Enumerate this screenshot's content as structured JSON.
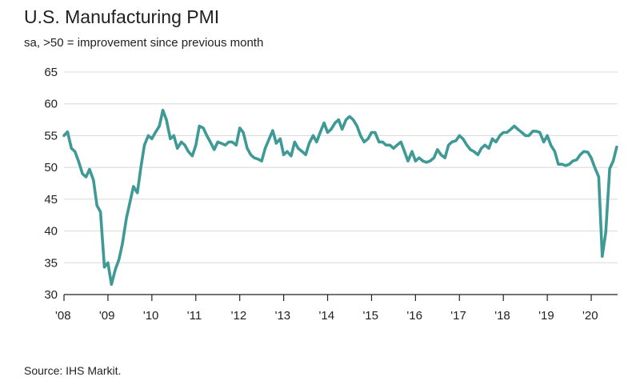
{
  "header": {
    "title": "U.S. Manufacturing PMI",
    "subtitle": "sa, >50 = improvement since previous month"
  },
  "footer": {
    "source": "Source: IHS Markit."
  },
  "colors": {
    "line": "#3f9a96",
    "grid": "#d8d8d8",
    "axis": "#222222"
  },
  "chart_data": {
    "type": "line",
    "title": "U.S. Manufacturing PMI",
    "subtitle": "sa, >50 = improvement since previous month",
    "xlabel": "",
    "ylabel": "",
    "ylim": [
      30,
      65
    ],
    "yticks": [
      30,
      35,
      40,
      45,
      50,
      55,
      60,
      65
    ],
    "xlim": [
      2008.0,
      2020.6
    ],
    "xticks": [
      {
        "value": 2008,
        "label": "'08"
      },
      {
        "value": 2009,
        "label": "'09"
      },
      {
        "value": 2010,
        "label": "'10"
      },
      {
        "value": 2011,
        "label": "'11"
      },
      {
        "value": 2012,
        "label": "'12"
      },
      {
        "value": 2013,
        "label": "'13"
      },
      {
        "value": 2014,
        "label": "'14"
      },
      {
        "value": 2015,
        "label": "'15"
      },
      {
        "value": 2016,
        "label": "'16"
      },
      {
        "value": 2017,
        "label": "'17"
      },
      {
        "value": 2018,
        "label": "'18"
      },
      {
        "value": 2019,
        "label": "'19"
      },
      {
        "value": 2020,
        "label": "'20"
      }
    ],
    "grid": "horizontal",
    "series": [
      {
        "x": [
          2008.0,
          2008.08,
          2008.17,
          2008.25,
          2008.33,
          2008.42,
          2008.5,
          2008.58,
          2008.67,
          2008.75,
          2008.83,
          2008.92,
          2009.0,
          2009.08,
          2009.17,
          2009.25,
          2009.33,
          2009.42,
          2009.5,
          2009.58,
          2009.67,
          2009.75,
          2009.83,
          2009.92,
          2010.0,
          2010.08,
          2010.17,
          2010.25,
          2010.33,
          2010.42,
          2010.5,
          2010.58,
          2010.67,
          2010.75,
          2010.83,
          2010.92,
          2011.0,
          2011.08,
          2011.17,
          2011.25,
          2011.33,
          2011.42,
          2011.5,
          2011.58,
          2011.67,
          2011.75,
          2011.83,
          2011.92,
          2012.0,
          2012.08,
          2012.17,
          2012.25,
          2012.33,
          2012.42,
          2012.5,
          2012.58,
          2012.67,
          2012.75,
          2012.83,
          2012.92,
          2013.0,
          2013.08,
          2013.17,
          2013.25,
          2013.33,
          2013.42,
          2013.5,
          2013.58,
          2013.67,
          2013.75,
          2013.83,
          2013.92,
          2014.0,
          2014.08,
          2014.17,
          2014.25,
          2014.33,
          2014.42,
          2014.5,
          2014.58,
          2014.67,
          2014.75,
          2014.83,
          2014.92,
          2015.0,
          2015.08,
          2015.17,
          2015.25,
          2015.33,
          2015.42,
          2015.5,
          2015.58,
          2015.67,
          2015.75,
          2015.83,
          2015.92,
          2016.0,
          2016.08,
          2016.17,
          2016.25,
          2016.33,
          2016.42,
          2016.5,
          2016.58,
          2016.67,
          2016.75,
          2016.83,
          2016.92,
          2017.0,
          2017.08,
          2017.17,
          2017.25,
          2017.33,
          2017.42,
          2017.5,
          2017.58,
          2017.67,
          2017.75,
          2017.83,
          2017.92,
          2018.0,
          2018.08,
          2018.17,
          2018.25,
          2018.33,
          2018.42,
          2018.5,
          2018.58,
          2018.67,
          2018.75,
          2018.83,
          2018.92,
          2019.0,
          2019.08,
          2019.17,
          2019.25,
          2019.33,
          2019.42,
          2019.5,
          2019.58,
          2019.67,
          2019.75,
          2019.83,
          2019.92,
          2020.0,
          2020.08,
          2020.17,
          2020.25,
          2020.33,
          2020.42,
          2020.5,
          2020.58
        ],
        "values": [
          55.0,
          55.6,
          53.0,
          52.5,
          51.0,
          49.0,
          48.5,
          49.7,
          48.0,
          44.0,
          43.0,
          34.3,
          35.0,
          31.6,
          34.0,
          35.5,
          38.0,
          42.0,
          44.5,
          47.0,
          46.0,
          50.0,
          53.5,
          55.0,
          54.5,
          55.5,
          56.5,
          59.0,
          57.5,
          54.5,
          55.0,
          53.0,
          54.0,
          53.5,
          52.5,
          51.8,
          53.5,
          56.5,
          56.2,
          55.0,
          54.0,
          52.8,
          54.0,
          53.8,
          53.5,
          54.0,
          54.0,
          53.5,
          56.2,
          55.5,
          53.0,
          52.0,
          51.5,
          51.3,
          51.0,
          53.0,
          54.5,
          55.8,
          53.8,
          54.5,
          52.0,
          52.5,
          51.8,
          54.0,
          53.0,
          52.5,
          52.0,
          53.8,
          55.0,
          54.0,
          55.5,
          57.0,
          55.5,
          56.0,
          57.0,
          57.5,
          56.0,
          57.5,
          58.0,
          57.5,
          56.5,
          55.0,
          54.0,
          54.5,
          55.5,
          55.5,
          54.0,
          54.0,
          53.5,
          53.5,
          53.0,
          53.5,
          54.0,
          52.5,
          51.0,
          52.5,
          51.0,
          51.5,
          51.0,
          50.8,
          51.0,
          51.5,
          52.8,
          52.0,
          51.5,
          53.5,
          54.0,
          54.2,
          55.0,
          54.5,
          53.5,
          52.8,
          52.5,
          52.0,
          53.0,
          53.5,
          53.0,
          54.5,
          54.0,
          55.0,
          55.5,
          55.5,
          56.0,
          56.5,
          56.0,
          55.5,
          55.0,
          55.0,
          55.7,
          55.7,
          55.5,
          54.0,
          55.0,
          53.5,
          52.5,
          50.5,
          50.5,
          50.3,
          50.5,
          51.0,
          51.2,
          52.0,
          52.5,
          52.4,
          51.5,
          50.0,
          48.5,
          36.0,
          39.8,
          49.8,
          51.0,
          53.2
        ]
      }
    ]
  }
}
